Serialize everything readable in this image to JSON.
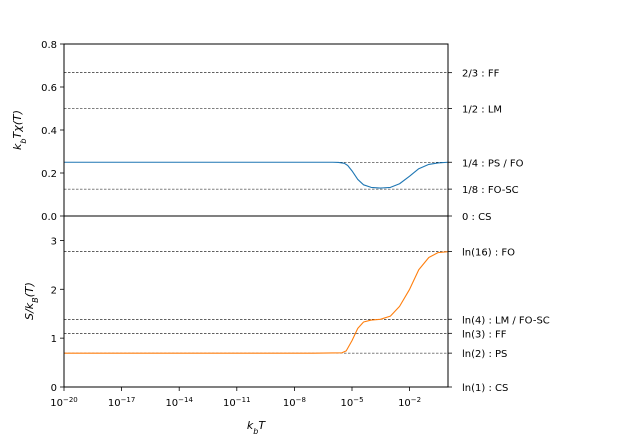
{
  "chart_data": [
    {
      "type": "line",
      "ylabel": "k_bTχ(T)",
      "ylim": [
        0,
        0.8
      ],
      "yticks": [
        "0.0",
        "0.2",
        "0.4",
        "0.6",
        "0.8"
      ],
      "x_scale": "log",
      "xlim": [
        1e-20,
        1
      ],
      "grid": false,
      "reference_lines": [
        {
          "value": 0.6667,
          "label": "2/3 : FF"
        },
        {
          "value": 0.5,
          "label": "1/2 : LM"
        },
        {
          "value": 0.25,
          "label": "1/4 : PS / FO"
        },
        {
          "value": 0.125,
          "label": "1/8 : FO-SC"
        },
        {
          "value": 0.0,
          "label": "0 : CS"
        }
      ],
      "series": [
        {
          "color": "#1f77b4",
          "points": [
            [
              1e-20,
              0.25
            ],
            [
              1e-08,
              0.25
            ],
            [
              1e-06,
              0.25
            ],
            [
              2e-06,
              0.249
            ],
            [
              4e-06,
              0.245
            ],
            [
              6e-06,
              0.235
            ],
            [
              1e-05,
              0.21
            ],
            [
              2e-05,
              0.17
            ],
            [
              4e-05,
              0.145
            ],
            [
              0.0001,
              0.133
            ],
            [
              0.0003,
              0.13
            ],
            [
              0.001,
              0.133
            ],
            [
              0.003,
              0.15
            ],
            [
              0.01,
              0.185
            ],
            [
              0.03,
              0.22
            ],
            [
              0.1,
              0.24
            ],
            [
              0.3,
              0.247
            ],
            [
              1,
              0.25
            ]
          ]
        }
      ]
    },
    {
      "type": "line",
      "ylabel": "S/k_B(T)",
      "xlabel": "k_bT",
      "ylim": [
        0,
        3.5
      ],
      "yticks": [
        "0",
        "1",
        "2",
        "3"
      ],
      "xticks": [
        "10^-20",
        "10^-17",
        "10^-14",
        "10^-11",
        "10^-8",
        "10^-5",
        "10^-2"
      ],
      "x_scale": "log",
      "xlim": [
        1e-20,
        1
      ],
      "grid": false,
      "reference_lines": [
        {
          "value": 2.7726,
          "label": "ln(16) : FO"
        },
        {
          "value": 1.3863,
          "label": "ln(4) : LM / FO-SC"
        },
        {
          "value": 1.0986,
          "label": "ln(3) : FF"
        },
        {
          "value": 0.6931,
          "label": "ln(2) : PS"
        },
        {
          "value": 0.0,
          "label": "ln(1) : CS"
        }
      ],
      "series": [
        {
          "color": "#ff7f0e",
          "points": [
            [
              1e-20,
              0.693
            ],
            [
              1e-07,
              0.693
            ],
            [
              3e-06,
              0.7
            ],
            [
              5e-06,
              0.74
            ],
            [
              1e-05,
              0.95
            ],
            [
              2e-05,
              1.2
            ],
            [
              4e-05,
              1.33
            ],
            [
              0.0001,
              1.37
            ],
            [
              0.0003,
              1.385
            ],
            [
              0.001,
              1.45
            ],
            [
              0.003,
              1.65
            ],
            [
              0.01,
              2.0
            ],
            [
              0.03,
              2.4
            ],
            [
              0.1,
              2.65
            ],
            [
              0.3,
              2.75
            ],
            [
              1,
              2.77
            ]
          ]
        }
      ]
    }
  ]
}
